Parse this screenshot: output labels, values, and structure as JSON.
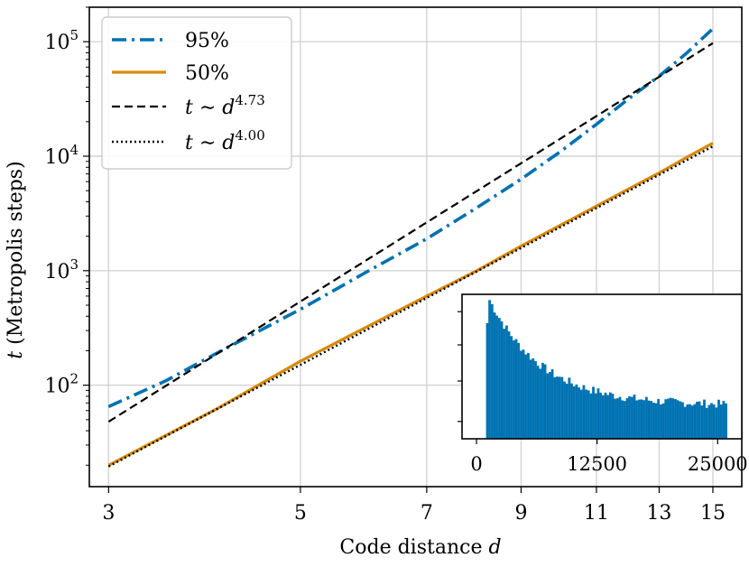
{
  "chart_data": {
    "type": "line",
    "title": "",
    "xlabel": "Code distance",
    "xlabel_var": "d",
    "ylabel": "(Metropolis steps)",
    "ylabel_var": "t",
    "xscale": "log",
    "yscale": "log",
    "xlim": [
      2.85,
      16.2
    ],
    "ylim": [
      13,
      200000
    ],
    "grid": true,
    "legend_position": "top-left",
    "x_ticks": [
      3,
      5,
      7,
      9,
      11,
      13,
      15
    ],
    "x_tick_labels": [
      "3",
      "5",
      "7",
      "9",
      "11",
      "13",
      "15"
    ],
    "y_ticks": [
      100,
      1000,
      10000,
      100000
    ],
    "y_tick_labels": [
      {
        "base": "10",
        "exp": "2"
      },
      {
        "base": "10",
        "exp": "3"
      },
      {
        "base": "10",
        "exp": "4"
      },
      {
        "base": "10",
        "exp": "5"
      }
    ],
    "series": [
      {
        "name": "95%",
        "style": "dashdot",
        "color": "#0072b2",
        "x": [
          3,
          3.5,
          4,
          5,
          6,
          7,
          8,
          9,
          10,
          11,
          12,
          13,
          14,
          15
        ],
        "y": [
          65,
          110,
          190,
          460,
          1000,
          1900,
          3550,
          6300,
          11000,
          19000,
          32000,
          50000,
          80000,
          130000
        ]
      },
      {
        "name": "50%",
        "style": "solid",
        "color": "#d88a06",
        "x": [
          3,
          4,
          5,
          6,
          7,
          8,
          9,
          10,
          11,
          12,
          13,
          14,
          15
        ],
        "y": [
          20,
          62,
          162,
          330,
          600,
          1000,
          1640,
          2500,
          3660,
          5200,
          7150,
          9800,
          13000
        ]
      },
      {
        "name": "t ~ d^4.73",
        "label_text": "t ∼ d",
        "label_exp": "4.73",
        "style": "dashed",
        "color": "#000000",
        "formula": {
          "coef": 48,
          "exponent": 4.73,
          "x0": 3
        }
      },
      {
        "name": "t ~ d^4.00",
        "label_text": "t ∼ d",
        "label_exp": "4.00",
        "style": "dotted",
        "color": "#000000",
        "formula": {
          "coef": 19.5,
          "exponent": 4.0,
          "x0": 3
        }
      }
    ],
    "inset": {
      "type": "histogram",
      "color": "#0072b2",
      "xlim": [
        -1500,
        27500
      ],
      "x_ticks": [
        0,
        12500,
        25000
      ],
      "x_tick_labels": [
        "0",
        "12500",
        "25000"
      ],
      "yscale": "log",
      "bin_width": 250,
      "first_bin": 1000,
      "peak_bin": 1250,
      "last_bin": 26000
    }
  }
}
